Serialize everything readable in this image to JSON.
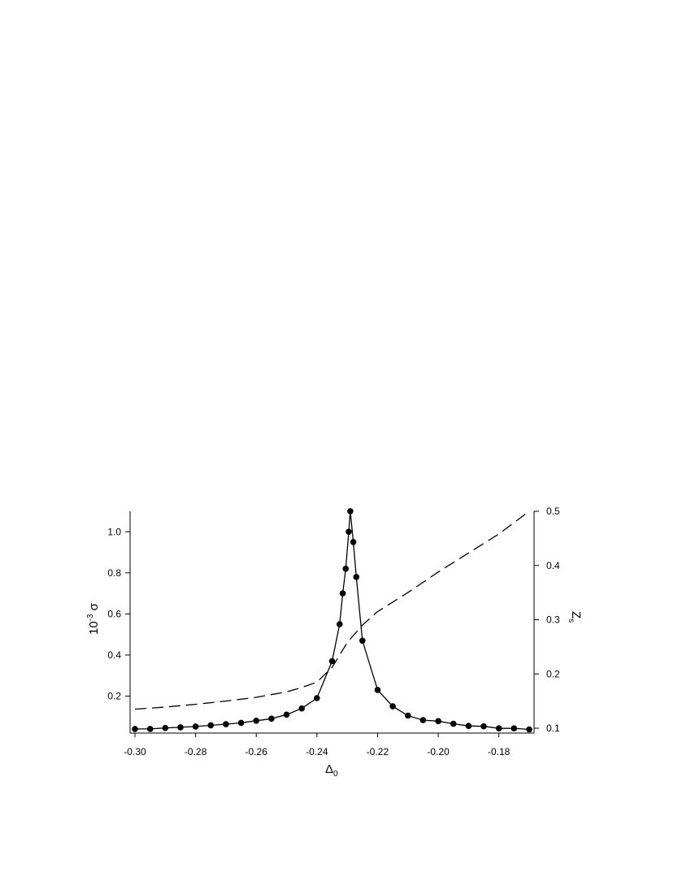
{
  "chart_data": {
    "type": "line",
    "title": "",
    "xlabel": "Δ",
    "xlabel_sub": "0",
    "ylabel_left": "σ",
    "ylabel_left_scale": "10",
    "ylabel_left_scale_exp": "-3",
    "ylabel_right": "Z",
    "ylabel_right_sub": "s",
    "xlim": [
      -0.3,
      -0.17
    ],
    "ylim_left": [
      0.02,
      1.1
    ],
    "ylim_right": [
      0.1,
      0.5
    ],
    "x_ticks": [
      "-0.30",
      "-0.28",
      "-0.26",
      "-0.24",
      "-0.22",
      "-0.20",
      "-0.18"
    ],
    "y_left_ticks": [
      "0.2",
      "0.4",
      "0.6",
      "0.8",
      "1.0"
    ],
    "y_right_ticks": [
      "0.1",
      "0.2",
      "0.3",
      "0.4",
      "0.5"
    ],
    "series": [
      {
        "axis": "left",
        "style": "solid-markers",
        "color": "#000000",
        "x": [
          -0.3,
          -0.295,
          -0.29,
          -0.285,
          -0.28,
          -0.275,
          -0.27,
          -0.265,
          -0.26,
          -0.255,
          -0.25,
          -0.245,
          -0.24,
          -0.235,
          -0.2325,
          -0.2315,
          -0.2305,
          -0.2295,
          -0.229,
          -0.228,
          -0.227,
          -0.225,
          -0.22,
          -0.215,
          -0.21,
          -0.205,
          -0.2,
          -0.195,
          -0.19,
          -0.185,
          -0.18,
          -0.175,
          -0.17
        ],
        "y": [
          0.04,
          0.04,
          0.045,
          0.048,
          0.052,
          0.058,
          0.063,
          0.07,
          0.08,
          0.09,
          0.11,
          0.14,
          0.19,
          0.37,
          0.55,
          0.7,
          0.82,
          1.0,
          1.1,
          0.95,
          0.78,
          0.47,
          0.23,
          0.15,
          0.105,
          0.083,
          0.078,
          0.065,
          0.055,
          0.053,
          0.043,
          0.043,
          0.038
        ]
      },
      {
        "axis": "right",
        "style": "dashed",
        "color": "#000000",
        "x": [
          -0.3,
          -0.29,
          -0.28,
          -0.27,
          -0.26,
          -0.25,
          -0.245,
          -0.24,
          -0.235,
          -0.23,
          -0.225,
          -0.22,
          -0.21,
          -0.2,
          -0.19,
          -0.18,
          -0.17
        ],
        "y": [
          0.135,
          0.139,
          0.144,
          0.15,
          0.157,
          0.167,
          0.175,
          0.185,
          0.212,
          0.258,
          0.29,
          0.315,
          0.35,
          0.388,
          0.423,
          0.458,
          0.5
        ]
      }
    ]
  }
}
